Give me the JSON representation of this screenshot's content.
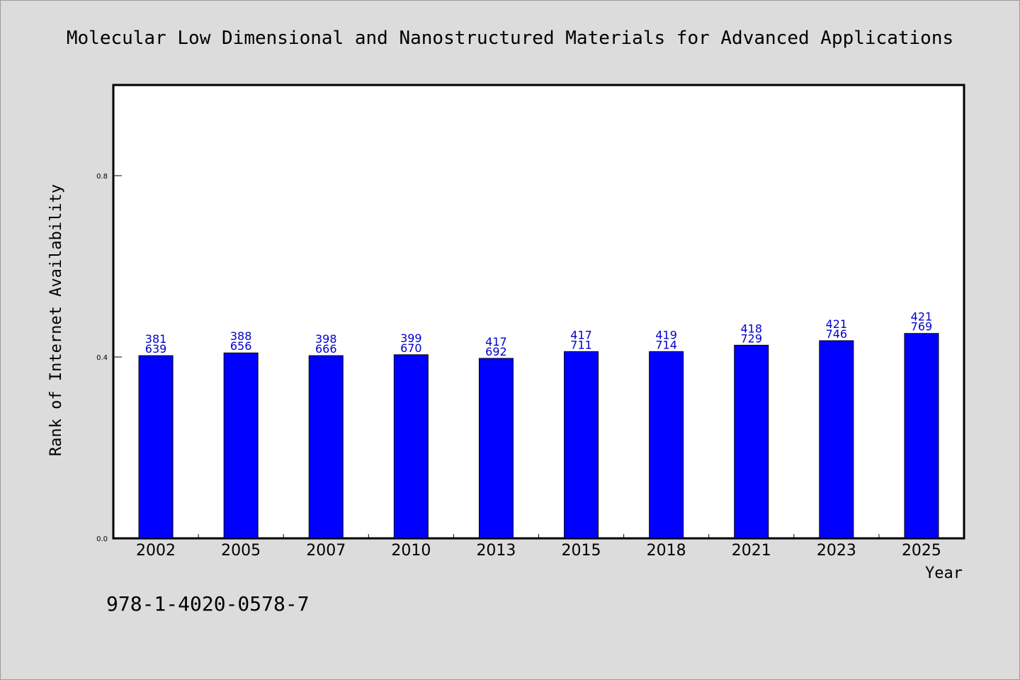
{
  "chart_data": {
    "type": "bar",
    "title": "Molecular Low Dimensional and Nanostructured Materials for Advanced Applications",
    "xlabel": "Year",
    "ylabel": "Rank of Internet Availability",
    "ylim": [
      0.0,
      1.0
    ],
    "yticks": [
      0.0,
      0.4,
      0.8
    ],
    "ytick_labels": [
      "0.0",
      "0.4",
      "0.8"
    ],
    "categories": [
      "2002",
      "2005",
      "2007",
      "2010",
      "2013",
      "2015",
      "2018",
      "2021",
      "2023",
      "2025"
    ],
    "values": [
      0.403,
      0.409,
      0.403,
      0.405,
      0.397,
      0.412,
      0.412,
      0.426,
      0.436,
      0.452
    ],
    "label_top": [
      "381",
      "388",
      "398",
      "399",
      "417",
      "417",
      "419",
      "418",
      "421",
      "421"
    ],
    "label_bottom": [
      "639",
      "656",
      "666",
      "670",
      "692",
      "711",
      "714",
      "729",
      "746",
      "769"
    ],
    "bar_color": "#0000ff",
    "label_color": "#0000cc",
    "grid": false,
    "legend": "none"
  },
  "footer_text": "978-1-4020-0578-7"
}
